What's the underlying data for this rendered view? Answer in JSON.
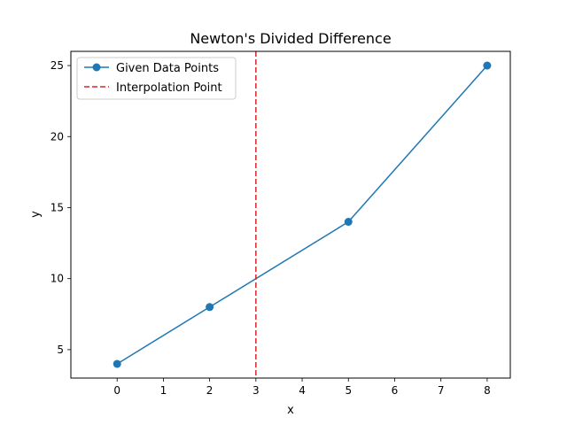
{
  "chart_data": {
    "type": "line",
    "title": "Newton's Divided Difference",
    "xlabel": "x",
    "ylabel": "y",
    "xlim": [
      -1.0,
      8.5
    ],
    "ylim": [
      3.0,
      26.0
    ],
    "xticks": [
      0,
      1,
      2,
      3,
      4,
      5,
      6,
      7,
      8
    ],
    "yticks": [
      5,
      10,
      15,
      20,
      25
    ],
    "grid": false,
    "legend_position": "top-left",
    "series": [
      {
        "name": "Given Data Points",
        "color": "#1f77b4",
        "marker": "circle",
        "line_style": "solid",
        "x": [
          0,
          2,
          5,
          8
        ],
        "y": [
          4,
          8,
          14,
          25
        ]
      }
    ],
    "vlines": [
      {
        "name": "Interpolation Point",
        "x": 3,
        "color": "#d62728",
        "line_style": "dashed"
      }
    ]
  }
}
